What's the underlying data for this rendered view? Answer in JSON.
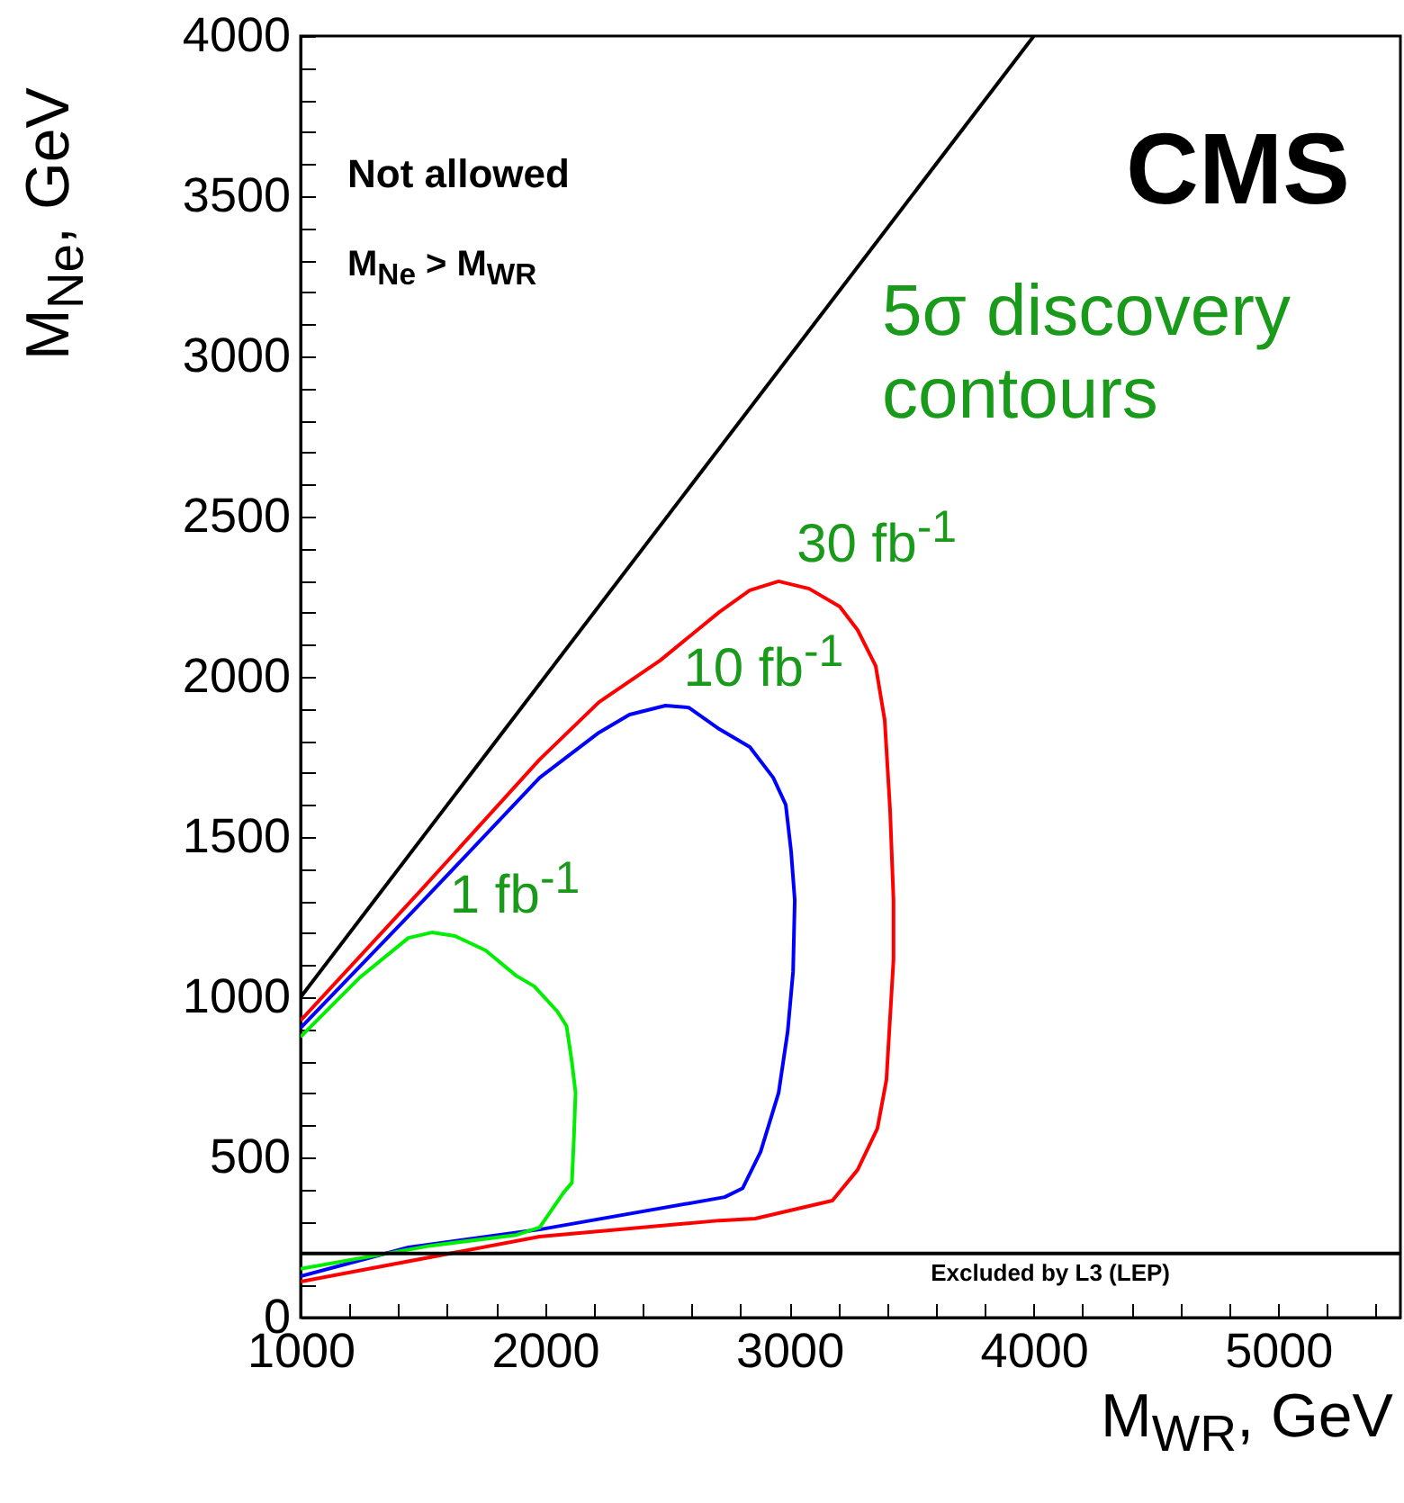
{
  "chart_data": {
    "type": "line",
    "xlabel": "M$_{WR}$, GeV",
    "ylabel": "M$_{Ne}$, GeV",
    "annotations": [
      "Not allowed",
      "M$_{Ne}$ > M$_{WR}$",
      "CMS",
      "5σ discovery contours"
    ],
    "xlim": [
      1000,
      5500
    ],
    "ylim": [
      0,
      4000
    ],
    "xticks": [
      1000,
      {
        "value": 1200,
        "label": null
      },
      {
        "value": 1400,
        "label": null
      },
      {
        "value": 1600,
        "label": null
      },
      {
        "value": 1800,
        "label": null
      },
      2000,
      {
        "value": 2200,
        "label": null
      },
      {
        "value": 2400,
        "label": null
      },
      {
        "value": 2600,
        "label": null
      },
      {
        "value": 2800,
        "label": null
      },
      3000,
      {
        "value": 3200,
        "label": null
      },
      {
        "value": 3400,
        "label": null
      },
      {
        "value": 3600,
        "label": null
      },
      {
        "value": 3800,
        "label": null
      },
      4000,
      {
        "value": 4200,
        "label": null
      },
      {
        "value": 4400,
        "label": null
      },
      {
        "value": 4600,
        "label": null
      },
      {
        "value": 4800,
        "label": null
      },
      5000,
      {
        "value": 5200,
        "label": null
      },
      {
        "value": 5400,
        "label": null
      }
    ],
    "yticks": [
      0,
      {
        "value": 100,
        "label": null
      },
      {
        "value": 200,
        "label": null
      },
      {
        "value": 300,
        "label": null
      },
      {
        "value": 400,
        "label": null
      },
      500,
      {
        "value": 600,
        "label": null
      },
      {
        "value": 700,
        "label": null
      },
      {
        "value": 800,
        "label": null
      },
      {
        "value": 900,
        "label": null
      },
      1000,
      {
        "value": 1100,
        "label": null
      },
      {
        "value": 1200,
        "label": null
      },
      {
        "value": 1300,
        "label": null
      },
      {
        "value": 1400,
        "label": null
      },
      1500,
      {
        "value": 1600,
        "label": null
      },
      {
        "value": 1700,
        "label": null
      },
      {
        "value": 1800,
        "label": null
      },
      {
        "value": 1900,
        "label": null
      },
      2000,
      {
        "value": 2100,
        "label": null
      },
      {
        "value": 2200,
        "label": null
      },
      {
        "value": 2300,
        "label": null
      },
      {
        "value": 2400,
        "label": null
      },
      2500,
      {
        "value": 2600,
        "label": null
      },
      {
        "value": 2700,
        "label": null
      },
      {
        "value": 2800,
        "label": null
      },
      {
        "value": 2900,
        "label": null
      },
      3000,
      {
        "value": 3100,
        "label": null
      },
      {
        "value": 3200,
        "label": null
      },
      {
        "value": 3300,
        "label": null
      },
      {
        "value": 3400,
        "label": null
      },
      3500,
      {
        "value": 3600,
        "label": null
      },
      {
        "value": 3700,
        "label": null
      },
      {
        "value": 3800,
        "label": null
      },
      {
        "value": 3900,
        "label": null
      },
      4000
    ],
    "series": [
      {
        "color": "#000000",
        "x": [
          1000,
          4000
        ],
        "values": [
          1000,
          4000
        ]
      },
      {
        "name": "30 fb$^{-1}$",
        "color": "#ff0000",
        "x": [
          1000,
          1500,
          1978,
          2221,
          2471,
          2713,
          2838,
          2956,
          3081,
          3206,
          3279,
          3353,
          3390,
          3412,
          3426,
          3426,
          3397,
          3360,
          3279,
          3176,
          2860,
          2713,
          1978,
          1000
        ],
        "values": [
          927,
          1340,
          1742,
          1921,
          2051,
          2202,
          2270,
          2298,
          2275,
          2219,
          2146,
          2034,
          1865,
          1584,
          1303,
          1118,
          742,
          590,
          461,
          365,
          309,
          303,
          253,
          112
        ]
      },
      {
        "name": "10 fb$^{-1}$",
        "color": "#0000ff",
        "x": [
          1000,
          1500,
          1978,
          2221,
          2346,
          2493,
          2588,
          2713,
          2838,
          2934,
          2985,
          3007,
          3022,
          3015,
          2993,
          2956,
          2882,
          2809,
          2735,
          1978,
          1441,
          1000
        ],
        "values": [
          904,
          1300,
          1685,
          1826,
          1882,
          1910,
          1904,
          1837,
          1781,
          1685,
          1601,
          1455,
          1303,
          1079,
          893,
          702,
          517,
          404,
          376,
          275,
          219,
          129
        ]
      },
      {
        "name": "1 fb$^{-1}$",
        "color": "#00ee00",
        "x": [
          1000,
          1243,
          1441,
          1537,
          1632,
          1757,
          1882,
          1956,
          2051,
          2088,
          2110,
          2125,
          2118,
          2110,
          2074,
          1978,
          1882,
          1537,
          1000
        ],
        "values": [
          876,
          1062,
          1185,
          1202,
          1191,
          1146,
          1067,
          1034,
          955,
          910,
          798,
          702,
          556,
          421,
          388,
          281,
          258,
          225,
          152
        ]
      }
    ],
    "ref_lines": [
      {
        "axis": "y",
        "value": 200,
        "label": "Excluded by L3 (LEP)",
        "color": "#000000"
      }
    ]
  }
}
